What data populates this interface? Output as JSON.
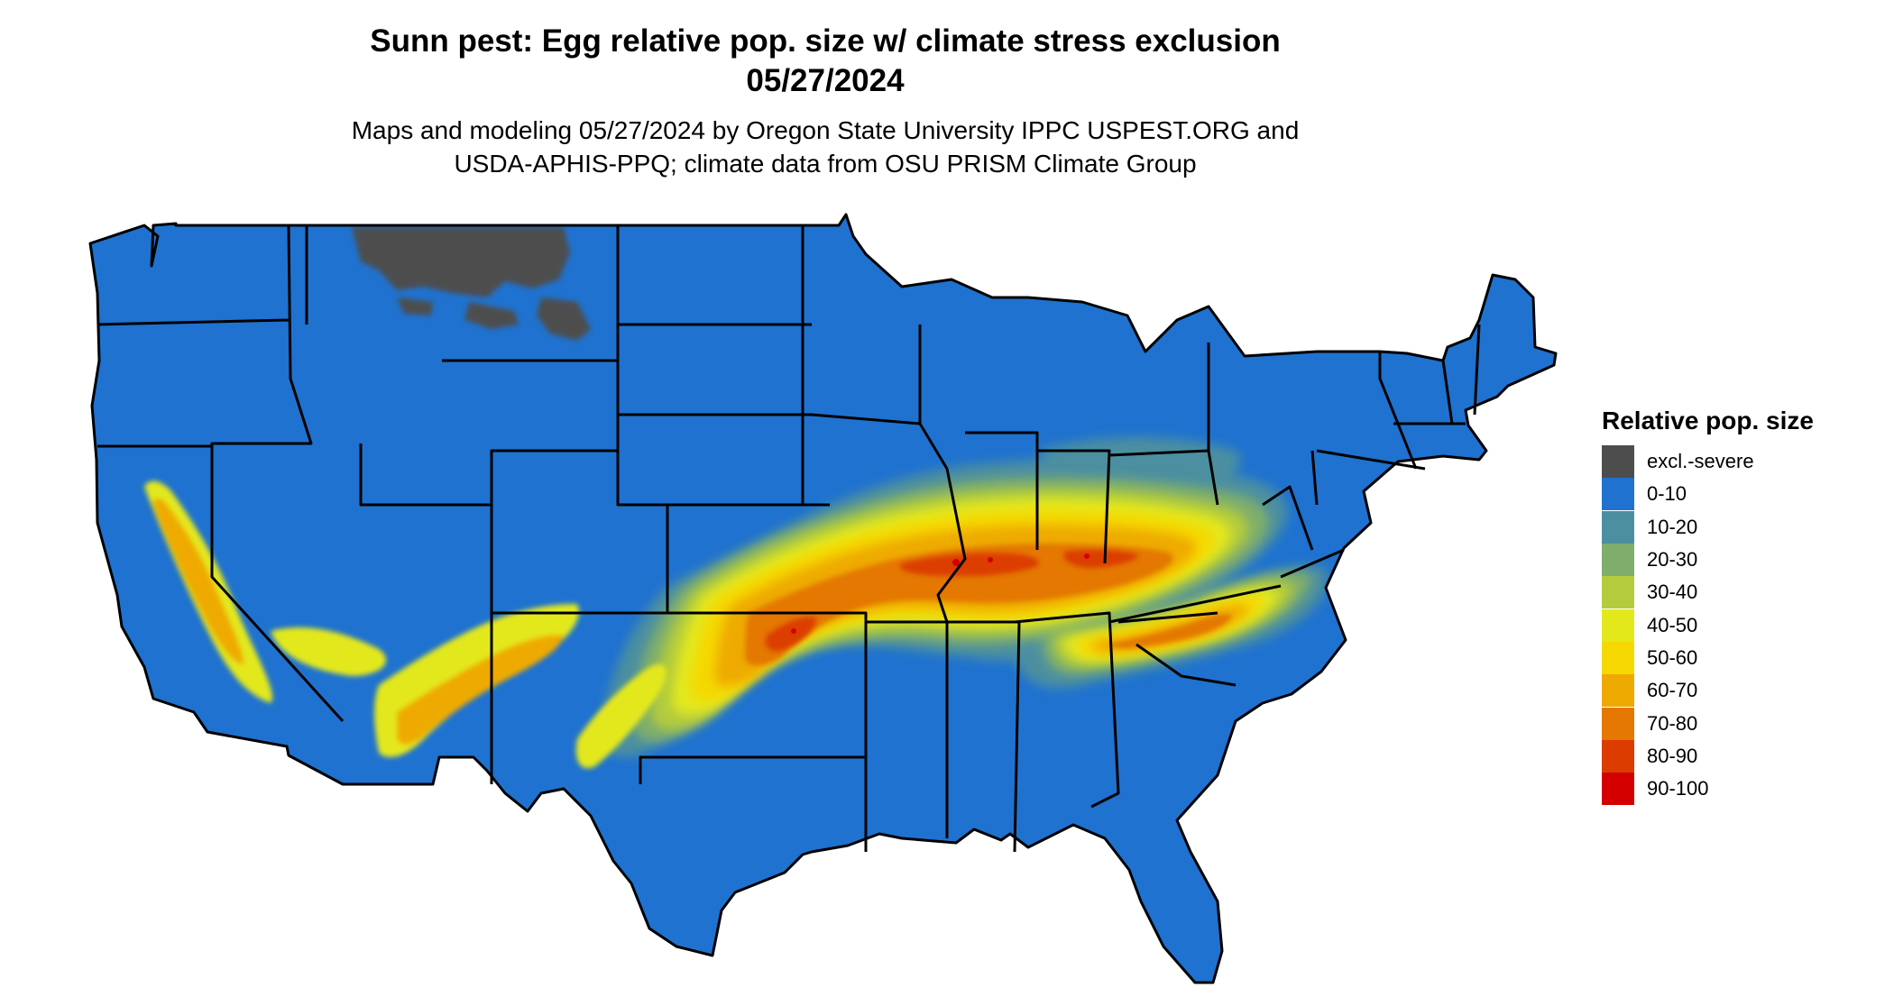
{
  "header": {
    "title_line1": "Sunn pest: Egg relative pop. size w/ climate stress exclusion",
    "title_line2": "05/27/2024",
    "subtitle_line1": "Maps and modeling 05/27/2024 by Oregon State University IPPC USPEST.ORG and",
    "subtitle_line2": "USDA-APHIS-PPQ; climate data from OSU PRISM Climate Group"
  },
  "legend": {
    "title": "Relative pop. size",
    "items": [
      {
        "label": "excl.-severe",
        "color": "#4d4d4d"
      },
      {
        "label": "0-10",
        "color": "#1f72cf"
      },
      {
        "label": "10-20",
        "color": "#4b8fa0"
      },
      {
        "label": "20-30",
        "color": "#7fae6c"
      },
      {
        "label": "30-40",
        "color": "#b4cc3c"
      },
      {
        "label": "40-50",
        "color": "#e3e81a"
      },
      {
        "label": "50-60",
        "color": "#f5d800"
      },
      {
        "label": "60-70",
        "color": "#eeaa00"
      },
      {
        "label": "70-80",
        "color": "#e47800"
      },
      {
        "label": "80-90",
        "color": "#dc3c00"
      },
      {
        "label": "90-100",
        "color": "#d40000"
      }
    ]
  },
  "colors": {
    "base": "#1f72cf",
    "excluded": "#4d4d4d",
    "border": "#000000"
  }
}
